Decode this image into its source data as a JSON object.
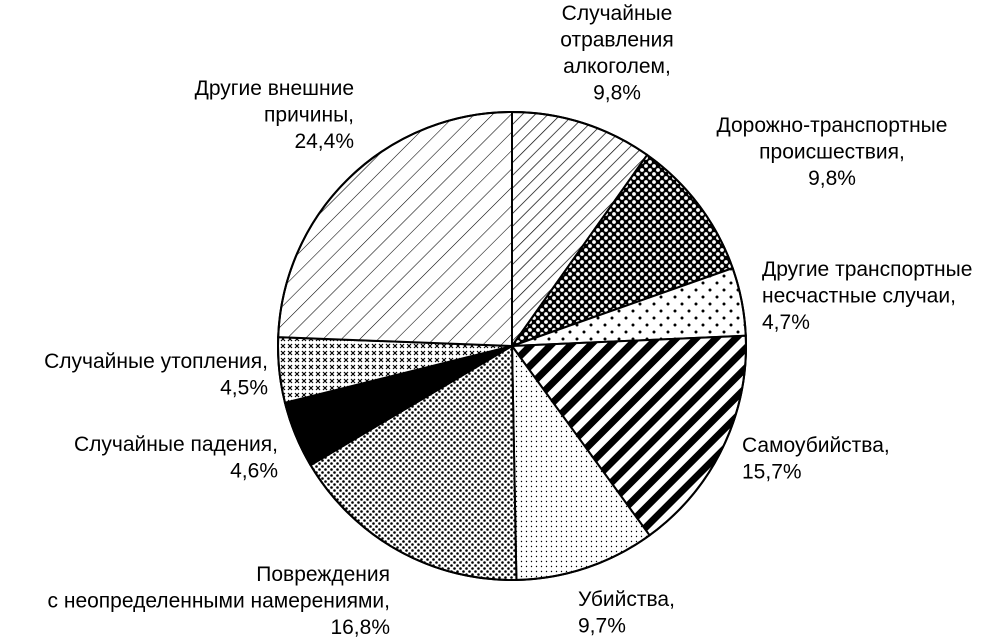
{
  "chart_data": {
    "type": "pie",
    "title": "",
    "unit": "%",
    "slices": [
      {
        "lines": [
          "Случайные",
          "отравления",
          "алкоголем,",
          "9,8%"
        ],
        "value": 9.8,
        "pattern": "hatch-dense"
      },
      {
        "lines": [
          "Дорожно-транспортные",
          "происшествия,",
          "9,8%"
        ],
        "value": 9.8,
        "pattern": "dark-dots"
      },
      {
        "lines": [
          "Другие транспортные",
          "несчастные случаи,",
          "4,7%"
        ],
        "value": 4.7,
        "pattern": "sparse-dots"
      },
      {
        "lines": [
          "Самоубийства,",
          "15,7%"
        ],
        "value": 15.7,
        "pattern": "bold-stripes"
      },
      {
        "lines": [
          "Убийства,",
          "9,7%"
        ],
        "value": 9.7,
        "pattern": "fine-dots"
      },
      {
        "lines": [
          "Повреждения",
          "с неопределенными намерениями,",
          "16,8%"
        ],
        "value": 16.8,
        "pattern": "medium-dots"
      },
      {
        "lines": [
          "Случайные падения,",
          "4,6%"
        ],
        "value": 4.6,
        "pattern": "solid-black"
      },
      {
        "lines": [
          "Случайные утопления,",
          "4,5%"
        ],
        "value": 4.5,
        "pattern": "crosses"
      },
      {
        "lines": [
          "Другие внешние",
          "причины,",
          "24,4%"
        ],
        "value": 24.4,
        "pattern": "hatch-sparse"
      }
    ],
    "colors": {
      "fill": "#000000",
      "background": "#ffffff"
    }
  }
}
